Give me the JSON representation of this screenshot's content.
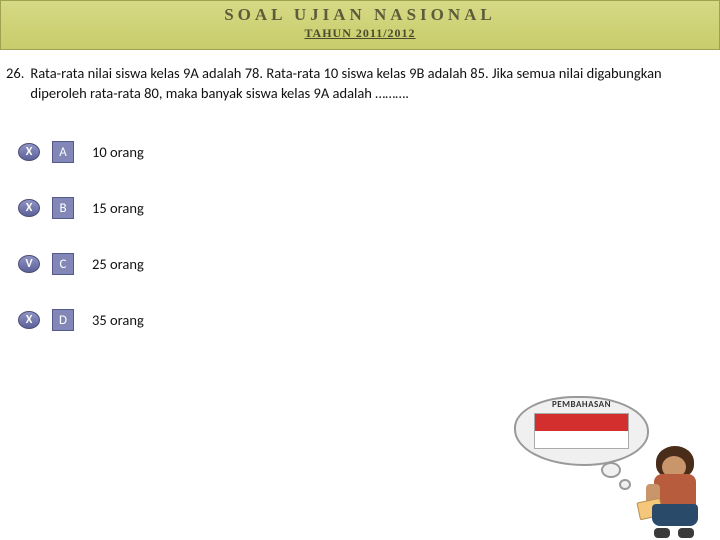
{
  "header": {
    "title": "SOAL UJIAN NASIONAL",
    "subtitle": "TAHUN 2011/2012",
    "bg_gradient_top": "#d6d985",
    "bg_gradient_bottom": "#c8cc6a"
  },
  "question": {
    "number": "26.",
    "text": "Rata-rata nilai siswa kelas 9A adalah 78. Rata-rata 10 siswa kelas 9B adalah 85. Jika semua nilai digabungkan diperoleh rata-rata 80, maka banyak siswa kelas 9A adalah ………."
  },
  "options": [
    {
      "mark": "X",
      "letter": "A",
      "text": "10 orang",
      "correct": false
    },
    {
      "mark": "X",
      "letter": "B",
      "text": "15 orang",
      "correct": false
    },
    {
      "mark": "V",
      "letter": "C",
      "text": "25 orang",
      "correct": true
    },
    {
      "mark": "X",
      "letter": "D",
      "text": "35 orang",
      "correct": false
    }
  ],
  "thought": {
    "label": "PEMBAHASAN",
    "flag_top_color": "#d32f2f",
    "flag_bottom_color": "#ffffff"
  },
  "colors": {
    "mark_bg": "#8f93c4",
    "letter_bg": "#8287b8",
    "text": "#111111"
  }
}
